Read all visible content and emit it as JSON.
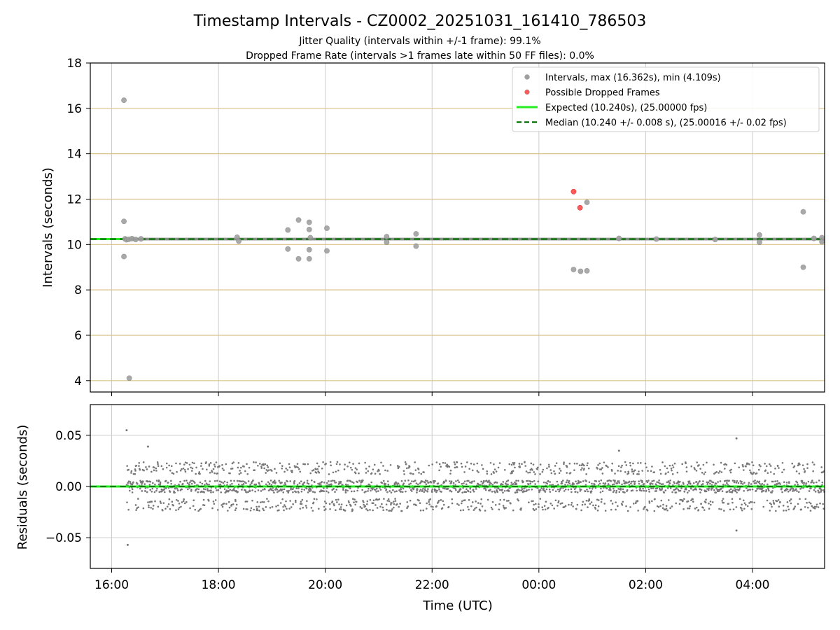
{
  "chart_data": {
    "type": "scatter",
    "title": "Timestamp Intervals - CZ0002_20251031_161410_786503",
    "subtitle_lines": [
      "Jitter Quality (intervals within +/-1 frame): 99.1%",
      "Dropped Frame Rate (intervals >1 frames late within 50 FF files): 0.0%"
    ],
    "xlabel": "Time (UTC)",
    "x_tick_labels": [
      "16:00",
      "18:00",
      "20:00",
      "22:00",
      "00:00",
      "02:00",
      "04:00"
    ],
    "x_tick_hours": [
      0,
      2,
      4,
      6,
      8,
      10,
      12
    ],
    "x_range_hours": [
      -0.4,
      13.35
    ],
    "x_unit_note": "hours after 16:00 UTC on 2025-10-31",
    "top": {
      "ylabel": "Intervals (seconds)",
      "ylim": [
        3.5,
        18
      ],
      "yticks": [
        4,
        6,
        8,
        10,
        12,
        14,
        16,
        18
      ],
      "expected": 10.24,
      "median": 10.24,
      "colors": {
        "intervals": "#a0a0a0",
        "dropped": "#ff5a5a",
        "expected": "#22ee22",
        "median": "#117711",
        "hgrid": "#d8c387",
        "vgrid": "#cccccc"
      },
      "intervals": [
        [
          0.23,
          16.36
        ],
        [
          0.23,
          11.02
        ],
        [
          0.23,
          9.47
        ],
        [
          0.33,
          4.11
        ],
        [
          0.25,
          10.25
        ],
        [
          0.28,
          10.21
        ],
        [
          0.32,
          10.23
        ],
        [
          0.38,
          10.26
        ],
        [
          0.45,
          10.22
        ],
        [
          0.55,
          10.25
        ],
        [
          2.35,
          10.32
        ],
        [
          2.38,
          10.15
        ],
        [
          3.3,
          10.64
        ],
        [
          3.3,
          9.8
        ],
        [
          3.5,
          11.08
        ],
        [
          3.5,
          9.37
        ],
        [
          3.7,
          10.98
        ],
        [
          3.7,
          10.66
        ],
        [
          3.7,
          9.77
        ],
        [
          3.7,
          9.37
        ],
        [
          3.72,
          10.3
        ],
        [
          4.03,
          10.72
        ],
        [
          4.03,
          9.72
        ],
        [
          5.15,
          10.35
        ],
        [
          5.15,
          10.1
        ],
        [
          5.7,
          10.47
        ],
        [
          5.7,
          9.93
        ],
        [
          8.65,
          8.9
        ],
        [
          8.78,
          8.82
        ],
        [
          8.9,
          11.86
        ],
        [
          8.9,
          8.84
        ],
        [
          9.5,
          10.27
        ],
        [
          10.2,
          10.24
        ],
        [
          11.3,
          10.22
        ],
        [
          12.13,
          10.42
        ],
        [
          12.13,
          10.1
        ],
        [
          12.95,
          11.44
        ],
        [
          12.95,
          9.0
        ],
        [
          13.15,
          10.27
        ],
        [
          13.3,
          10.3
        ],
        [
          13.3,
          10.12
        ]
      ],
      "dropped": [
        [
          8.65,
          12.33
        ],
        [
          8.77,
          11.62
        ]
      ],
      "legend": [
        {
          "label": "Intervals, max (16.362s), min (4.109s)",
          "kind": "marker",
          "color": "#a0a0a0"
        },
        {
          "label": "Possible Dropped Frames",
          "kind": "marker",
          "color": "#ff5a5a"
        },
        {
          "label": "Expected (10.240s), (25.00000 fps)",
          "kind": "line",
          "color": "#22ee22"
        },
        {
          "label": "Median (10.240 +/- 0.008 s), (25.00016 +/- 0.02 fps)",
          "kind": "dashed",
          "color": "#117711"
        }
      ]
    },
    "bottom": {
      "ylabel": "Residuals (seconds)",
      "ylim": [
        -0.08,
        0.08
      ],
      "yticks": [
        -0.05,
        0.0,
        0.05
      ],
      "ytick_labels": [
        "−0.05",
        "0.00",
        "0.05"
      ],
      "point_color": "#777777",
      "residual_x_start": 0.28,
      "residual_x_end": 13.35,
      "residual_outliers": [
        [
          0.28,
          0.055
        ],
        [
          0.3,
          -0.057
        ],
        [
          0.68,
          0.039
        ],
        [
          9.5,
          0.035
        ],
        [
          11.7,
          0.047
        ],
        [
          11.7,
          -0.043
        ]
      ]
    }
  }
}
